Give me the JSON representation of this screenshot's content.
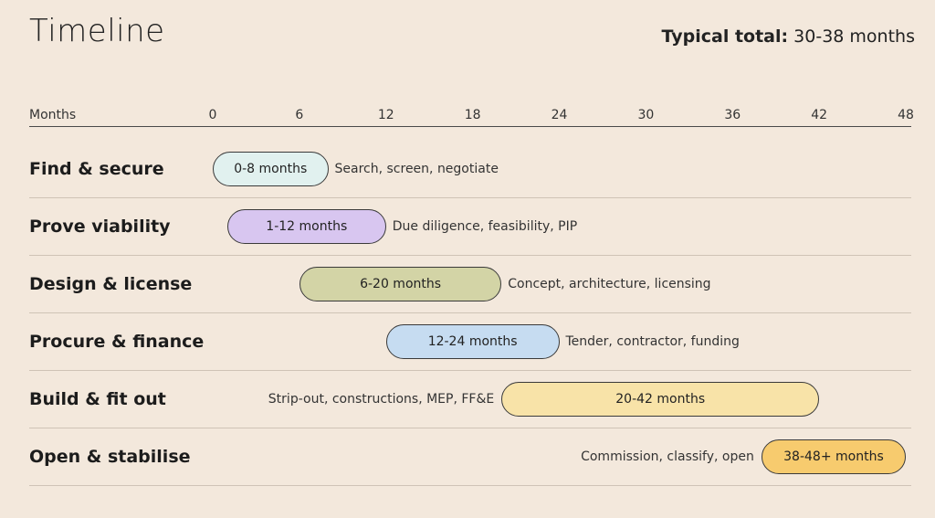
{
  "header": {
    "title": "Timeline",
    "total_label": "Typical total:",
    "total_value": "30-38 months"
  },
  "chart_data": {
    "type": "bar",
    "xlabel": "Months",
    "xlim": [
      0,
      48
    ],
    "ticks": [
      "0",
      "6",
      "12",
      "18",
      "24",
      "30",
      "36",
      "42",
      "48"
    ],
    "tick_values": [
      0,
      6,
      12,
      18,
      24,
      30,
      36,
      42,
      48
    ],
    "grid": false,
    "phases": [
      {
        "name": "Find & secure",
        "start": 0,
        "end": 8,
        "label": "0-8 months",
        "note": "Search, screen, negotiate",
        "note_side": "right",
        "color": "#e1f1ef"
      },
      {
        "name": "Prove viability",
        "start": 1,
        "end": 12,
        "label": "1-12 months",
        "note": "Due diligence, feasibility, PIP",
        "note_side": "right",
        "color": "#d8c6f0"
      },
      {
        "name": "Design & license",
        "start": 6,
        "end": 20,
        "label": "6-20 months",
        "note": "Concept, architecture, licensing",
        "note_side": "right",
        "color": "#d3d4a6"
      },
      {
        "name": "Procure & finance",
        "start": 12,
        "end": 24,
        "label": "12-24 months",
        "note": "Tender, contractor, funding",
        "note_side": "right",
        "color": "#c6dcf1"
      },
      {
        "name": "Build & fit out",
        "start": 20,
        "end": 42,
        "label": "20-42 months",
        "note": "Strip-out, constructions, MEP, FF&E",
        "note_side": "left",
        "color": "#f8e3a8"
      },
      {
        "name": "Open & stabilise",
        "start": 38,
        "end": 48,
        "label": "38-48+ months",
        "note": "Commission, classify, open",
        "note_side": "left",
        "color": "#f7cb6e"
      }
    ]
  }
}
